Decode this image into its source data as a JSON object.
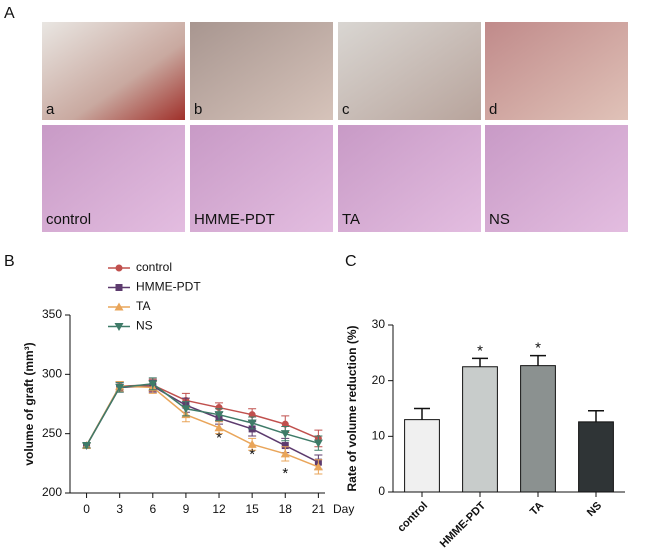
{
  "panels": [
    "A",
    "B",
    "C"
  ],
  "photos": {
    "top": [
      "a",
      "b",
      "c",
      "d"
    ],
    "bottom": [
      "control",
      "HMME-PDT",
      "TA",
      "NS"
    ]
  },
  "chart_data": [
    {
      "type": "line",
      "xlabel": "Day",
      "ylabel": "volume of graft (mm³)",
      "x": [
        0,
        3,
        6,
        9,
        12,
        15,
        18,
        21
      ],
      "xlim": [
        -1.5,
        21.6
      ],
      "xticks": [
        0,
        3,
        6,
        9,
        12,
        15,
        18,
        21
      ],
      "ylim": [
        200,
        350
      ],
      "yticks": [
        200,
        250,
        300,
        350
      ],
      "series": [
        {
          "name": "control",
          "color": "#c0504d",
          "marker": "circle",
          "values": [
            240,
            290,
            291,
            278,
            272,
            266,
            258,
            246
          ],
          "errors": [
            2,
            4,
            5,
            6,
            4,
            5,
            7,
            7
          ]
        },
        {
          "name": "HMME-PDT",
          "color": "#5d3b6e",
          "marker": "square",
          "values": [
            240,
            289,
            290,
            274,
            263,
            254,
            240,
            226
          ],
          "errors": [
            2,
            4,
            5,
            6,
            5,
            6,
            6,
            6
          ]
        },
        {
          "name": "TA",
          "color": "#e9a55a",
          "marker": "triangle",
          "values": [
            240,
            290,
            289,
            266,
            255,
            241,
            233,
            222
          ],
          "errors": [
            2,
            4,
            5,
            6,
            5,
            5,
            6,
            6
          ]
        },
        {
          "name": "NS",
          "color": "#3f7b68",
          "marker": "down-triangle",
          "values": [
            240,
            289,
            292,
            271,
            266,
            259,
            250,
            242
          ],
          "errors": [
            2,
            4,
            5,
            6,
            5,
            5,
            6,
            6
          ]
        }
      ],
      "annotations": [
        {
          "x": 12,
          "y": 246,
          "text": "*"
        },
        {
          "x": 15,
          "y": 232,
          "text": "*"
        },
        {
          "x": 18,
          "y": 216,
          "text": "*"
        }
      ]
    },
    {
      "type": "bar",
      "ylabel": "Rate of volume reduction (%)",
      "categories": [
        "control",
        "HMME-PDT",
        "TA",
        "NS"
      ],
      "values": [
        13,
        22.5,
        22.7,
        12.6
      ],
      "errors": [
        2,
        1.5,
        1.8,
        2
      ],
      "colors": [
        "#f0f0f0",
        "#c8cccb",
        "#8b9190",
        "#2f3436"
      ],
      "significance": [
        null,
        "*",
        "*",
        null
      ],
      "ylim": [
        0,
        30
      ],
      "yticks": [
        0,
        10,
        20,
        30
      ]
    }
  ]
}
